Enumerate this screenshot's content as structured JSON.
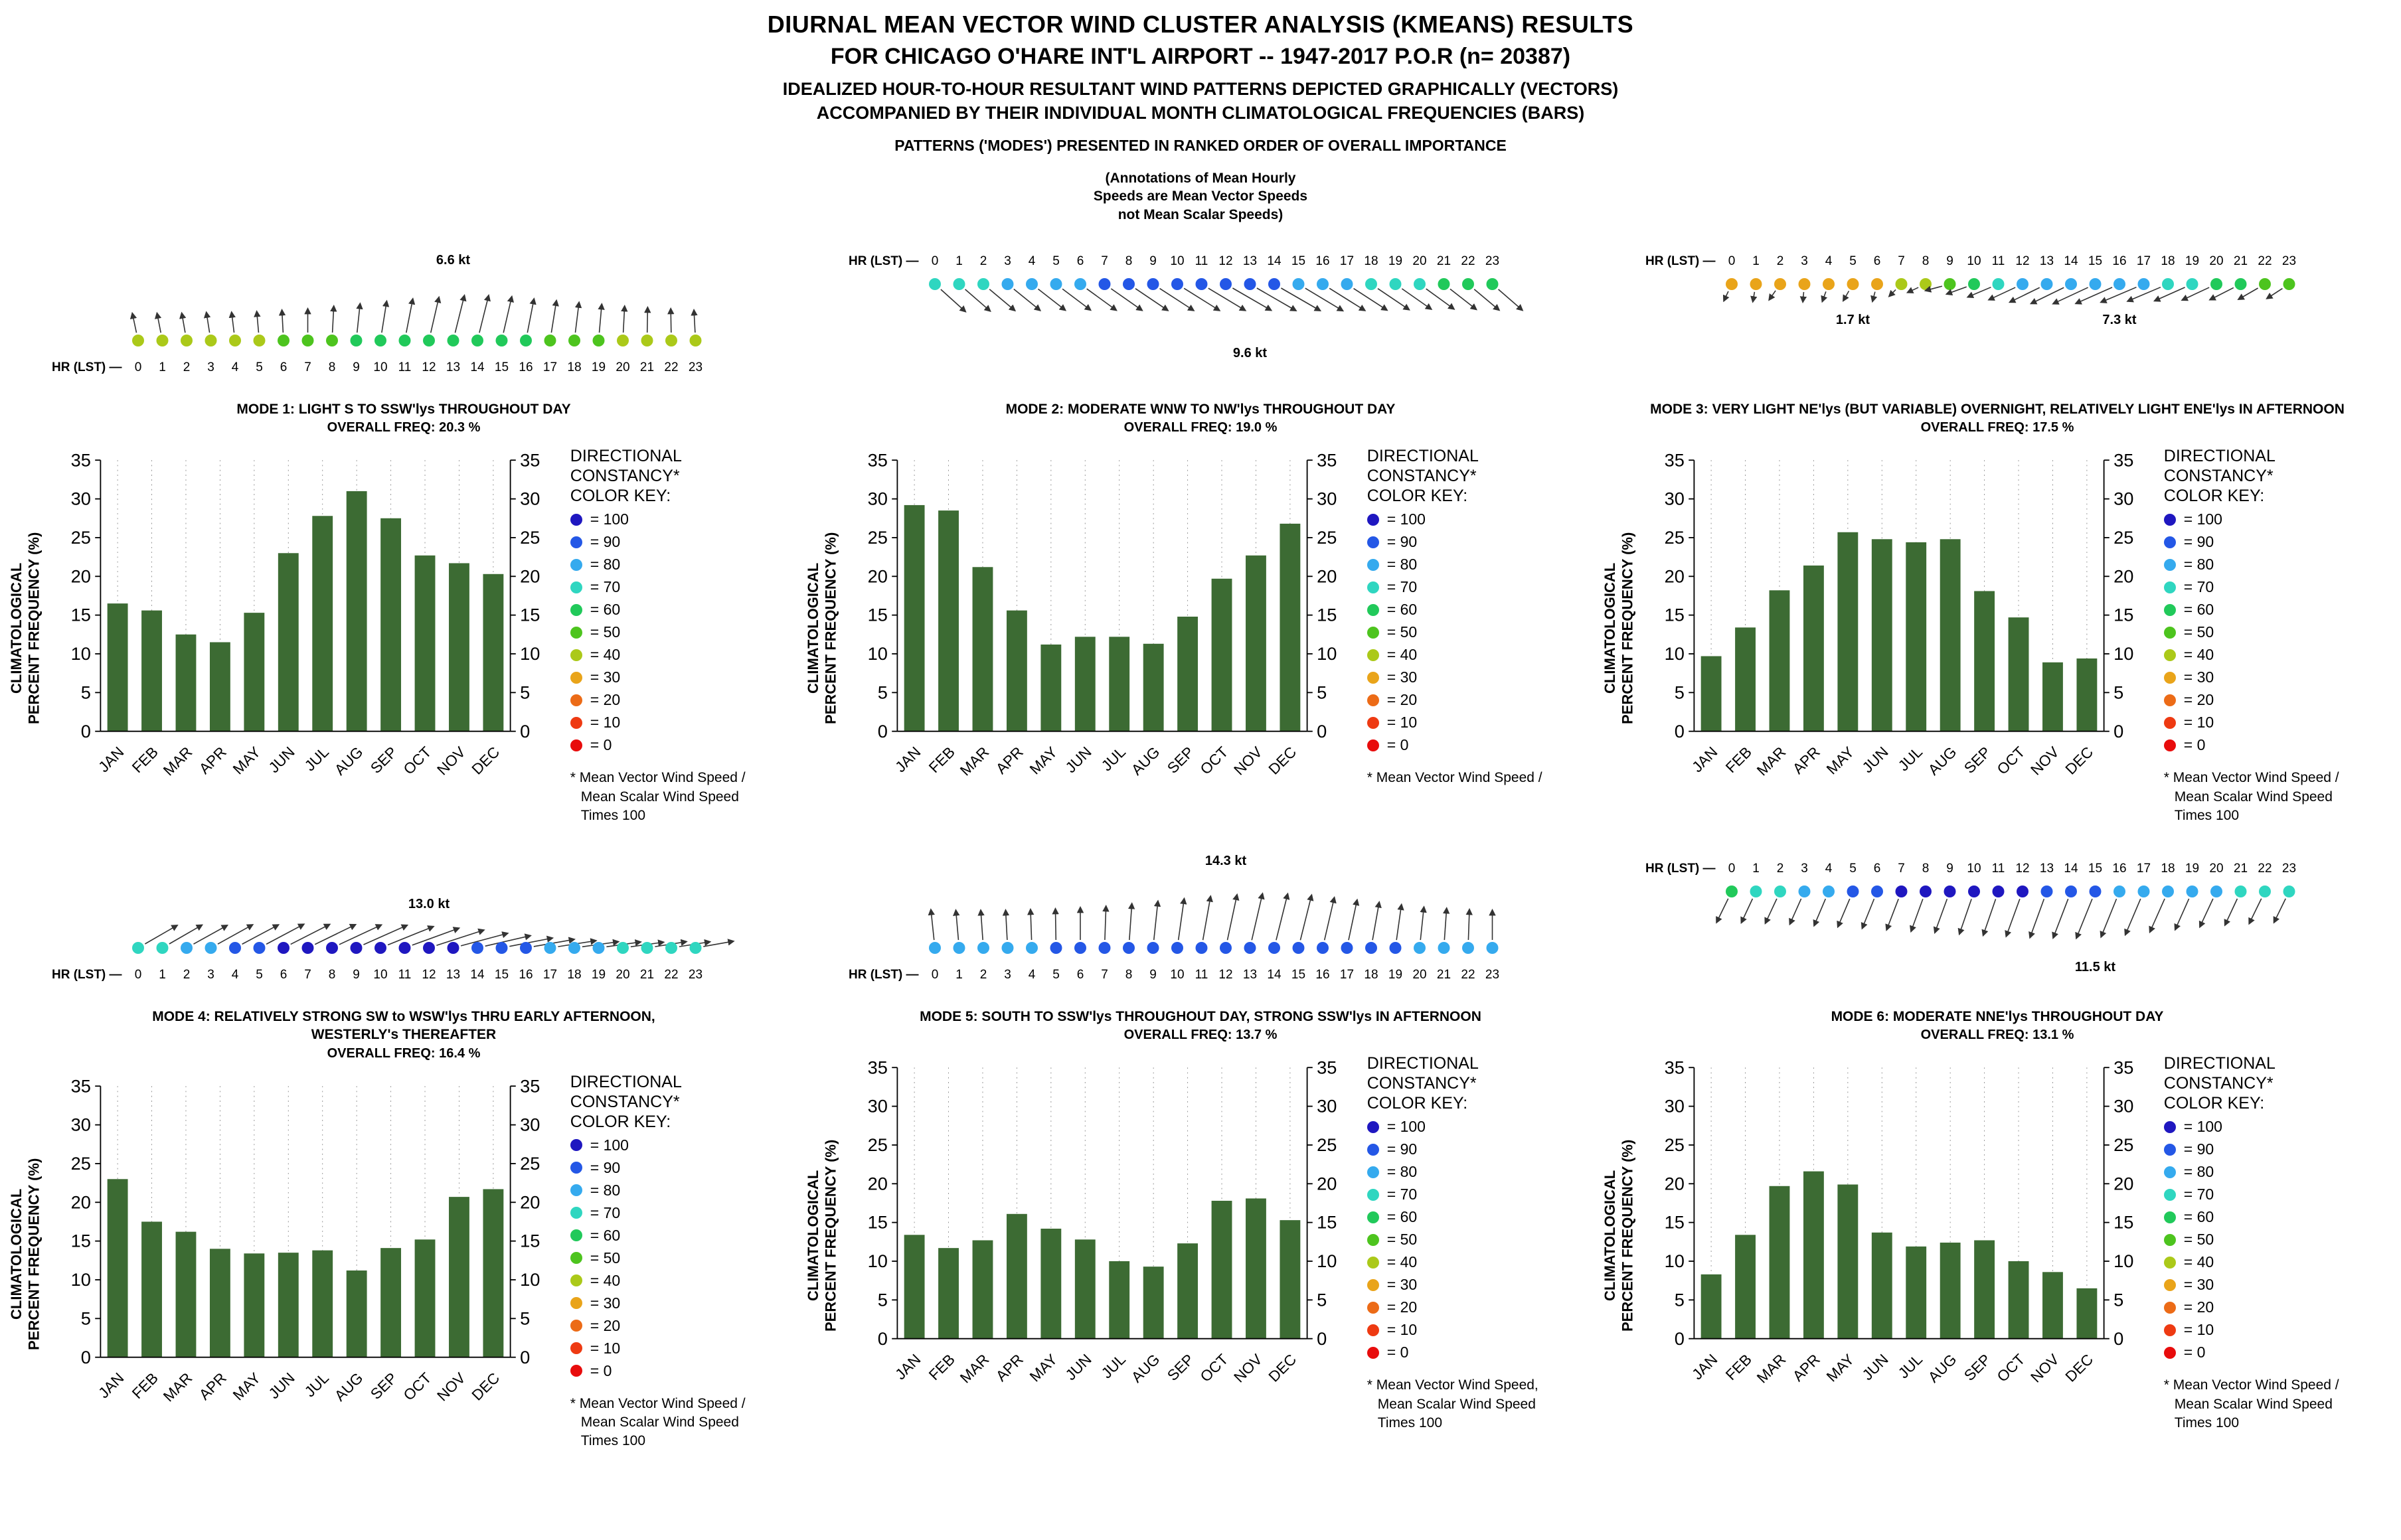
{
  "header": {
    "title1": "DIURNAL MEAN VECTOR WIND CLUSTER ANALYSIS (KMEANS) RESULTS",
    "title2": "FOR CHICAGO O'HARE INT'L AIRPORT -- 1947-2017 P.O.R (n= 20387)",
    "title3": "IDEALIZED HOUR-TO-HOUR RESULTANT WIND PATTERNS DEPICTED GRAPHICALLY (VECTORS)",
    "title4": "ACCOMPANIED BY THEIR INDIVIDUAL MONTH CLIMATOLOGICAL FREQUENCIES (BARS)",
    "title5": "PATTERNS ('MODES') PRESENTED IN RANKED ORDER OF OVERALL IMPORTANCE",
    "note_lines": [
      "(Annotations of Mean Hourly",
      "Speeds are Mean Vector Speeds",
      "not Mean Scalar Speeds)"
    ]
  },
  "axis": {
    "ylabel_lines": [
      "CLIMATOLOGICAL",
      "PERCENT FREQUENCY (%)"
    ],
    "yticks": [
      0,
      5,
      10,
      15,
      20,
      25,
      30,
      35
    ],
    "ylim": [
      0,
      35
    ],
    "months": [
      "JAN",
      "FEB",
      "MAR",
      "APR",
      "MAY",
      "JUN",
      "JUL",
      "AUG",
      "SEP",
      "OCT",
      "NOV",
      "DEC"
    ],
    "hr_label": "HR (LST)",
    "hours": [
      "0",
      "1",
      "2",
      "3",
      "4",
      "5",
      "6",
      "7",
      "8",
      "9",
      "10",
      "11",
      "12",
      "13",
      "14",
      "15",
      "16",
      "17",
      "18",
      "19",
      "20",
      "21",
      "22",
      "23"
    ]
  },
  "color_key": {
    "title_lines": [
      "DIRECTIONAL",
      "CONSTANCY*",
      "COLOR KEY:"
    ],
    "entries": [
      {
        "label": "= 100",
        "value": "100",
        "color": "#1f17c0"
      },
      {
        "label": "= 90",
        "value": "90",
        "color": "#2457e6"
      },
      {
        "label": "= 80",
        "value": "80",
        "color": "#35aaee"
      },
      {
        "label": "= 70",
        "value": "70",
        "color": "#2fd6c0"
      },
      {
        "label": "= 60",
        "value": "60",
        "color": "#21c95a"
      },
      {
        "label": "= 50",
        "value": "50",
        "color": "#4dc41e"
      },
      {
        "label": "= 40",
        "value": "40",
        "color": "#abc919"
      },
      {
        "label": "= 30",
        "value": "30",
        "color": "#e9a41a"
      },
      {
        "label": "= 20",
        "value": "20",
        "color": "#ec6b17"
      },
      {
        "label": "= 10",
        "value": "10",
        "color": "#ee3a12"
      },
      {
        "label": "= 0",
        "value": "0",
        "color": "#e80c0c"
      }
    ]
  },
  "bar_color": "#3c6b33",
  "chart_data": [
    {
      "type": "bar",
      "title_lines": [
        "MODE 1:  LIGHT S TO SSW'lys THROUGHOUT DAY"
      ],
      "freq": "OVERALL FREQ: 20.3 %",
      "categories": [
        "JAN",
        "FEB",
        "MAR",
        "APR",
        "MAY",
        "JUN",
        "JUL",
        "AUG",
        "SEP",
        "OCT",
        "NOV",
        "DEC"
      ],
      "values": [
        16.5,
        15.6,
        12.5,
        11.5,
        15.3,
        23.0,
        27.8,
        31.0,
        27.5,
        22.7,
        21.7,
        20.3
      ],
      "ylim": [
        0,
        35
      ],
      "arrows_side": "up",
      "annotations": [
        {
          "text": "6.6 kt",
          "hour": 13,
          "y": 45
        }
      ],
      "dot_constancy": [
        40,
        40,
        40,
        40,
        40,
        40,
        50,
        50,
        50,
        60,
        60,
        60,
        60,
        60,
        60,
        60,
        60,
        50,
        50,
        50,
        40,
        40,
        40,
        40
      ],
      "arrow_angles_deg": [
        102,
        101,
        100,
        99,
        97,
        95,
        93,
        90,
        87,
        84,
        81,
        79,
        77,
        76,
        76,
        77,
        79,
        81,
        83,
        85,
        87,
        89,
        91,
        93
      ],
      "arrow_lengths": [
        30,
        30,
        30,
        31,
        31,
        32,
        34,
        36,
        40,
        44,
        48,
        52,
        55,
        58,
        58,
        56,
        52,
        49,
        46,
        43,
        40,
        38,
        36,
        34
      ],
      "footnote_lines": [
        "* Mean Vector Wind Speed /",
        "Mean Scalar Wind Speed",
        "Times 100"
      ]
    },
    {
      "type": "bar",
      "title_lines": [
        "MODE 2:  MODERATE WNW TO NW'lys THROUGHOUT DAY"
      ],
      "freq": "OVERALL FREQ: 19.0 %",
      "categories": [
        "JAN",
        "FEB",
        "MAR",
        "APR",
        "MAY",
        "JUN",
        "JUL",
        "AUG",
        "SEP",
        "OCT",
        "NOV",
        "DEC"
      ],
      "values": [
        29.2,
        28.5,
        21.2,
        15.6,
        11.2,
        12.2,
        12.2,
        11.3,
        14.8,
        19.7,
        22.7,
        26.8
      ],
      "ylim": [
        0,
        35
      ],
      "arrows_side": "down",
      "annotations": [
        {
          "text": "9.6 kt",
          "hour": 13,
          "y": 185
        }
      ],
      "dot_constancy": [
        70,
        70,
        70,
        80,
        80,
        80,
        80,
        90,
        90,
        90,
        90,
        90,
        90,
        90,
        90,
        80,
        80,
        80,
        70,
        70,
        70,
        60,
        60,
        60
      ],
      "arrow_angles_deg": [
        -42,
        -41,
        -40,
        -39,
        -38,
        -37,
        -36,
        -35,
        -34,
        -33,
        -32,
        -31,
        -30,
        -30,
        -30,
        -31,
        -32,
        -33,
        -34,
        -35,
        -36,
        -38,
        -40,
        -41
      ],
      "arrow_lengths": [
        50,
        50,
        50,
        51,
        52,
        53,
        55,
        57,
        59,
        61,
        63,
        65,
        67,
        68,
        68,
        66,
        63,
        60,
        57,
        54,
        52,
        50,
        49,
        48
      ],
      "footnote_lines": [
        "* Mean Vector Wind Speed /"
      ]
    },
    {
      "type": "bar",
      "title_lines": [
        "MODE 3:  VERY LIGHT NE'lys (BUT VARIABLE) OVERNIGHT, RELATIVELY LIGHT ENE'lys IN AFTERNOON"
      ],
      "freq": "OVERALL FREQ: 17.5 %",
      "categories": [
        "JAN",
        "FEB",
        "MAR",
        "APR",
        "MAY",
        "JUN",
        "JUL",
        "AUG",
        "SEP",
        "OCT",
        "NOV",
        "DEC"
      ],
      "values": [
        9.7,
        13.4,
        18.2,
        21.4,
        25.7,
        24.8,
        24.4,
        24.8,
        18.1,
        14.7,
        8.9,
        9.4
      ],
      "ylim": [
        0,
        35
      ],
      "arrows_side": "down",
      "annotations": [
        {
          "text": "1.7 kt",
          "hour": 5,
          "y": 135
        },
        {
          "text": "7.3 kt",
          "hour": 16,
          "y": 135
        }
      ],
      "dot_constancy": [
        30,
        30,
        30,
        30,
        30,
        30,
        30,
        40,
        40,
        50,
        60,
        70,
        80,
        80,
        80,
        80,
        80,
        80,
        70,
        70,
        60,
        60,
        50,
        50
      ],
      "arrow_angles_deg": [
        -115,
        -100,
        -125,
        -95,
        -110,
        -120,
        -105,
        -135,
        -155,
        195,
        200,
        203,
        205,
        206,
        206,
        205,
        204,
        203,
        203,
        204,
        205,
        207,
        210,
        213
      ],
      "arrow_lengths": [
        16,
        15,
        17,
        15,
        16,
        17,
        15,
        14,
        18,
        26,
        32,
        38,
        44,
        50,
        55,
        58,
        60,
        58,
        54,
        50,
        45,
        40,
        34,
        28
      ],
      "footnote_lines": [
        "* Mean Vector Wind Speed /",
        "Mean Scalar Wind Speed",
        "Times 100"
      ]
    },
    {
      "type": "bar",
      "title_lines": [
        "MODE 4:  RELATIVELY STRONG SW to WSW'lys THRU EARLY AFTERNOON,",
        "WESTERLY's THEREAFTER"
      ],
      "freq": "OVERALL FREQ: 16.4 %",
      "categories": [
        "JAN",
        "FEB",
        "MAR",
        "APR",
        "MAY",
        "JUN",
        "JUL",
        "AUG",
        "SEP",
        "OCT",
        "NOV",
        "DEC"
      ],
      "values": [
        23.0,
        17.5,
        16.2,
        14.0,
        13.4,
        13.5,
        13.8,
        11.2,
        14.1,
        15.2,
        20.7,
        21.7
      ],
      "ylim": [
        0,
        35
      ],
      "arrows_side": "up",
      "annotations": [
        {
          "text": "13.0 kt",
          "hour": 12,
          "y": 100
        }
      ],
      "dot_constancy": [
        70,
        70,
        80,
        80,
        90,
        90,
        100,
        100,
        100,
        100,
        100,
        100,
        100,
        100,
        90,
        90,
        90,
        80,
        80,
        80,
        70,
        70,
        70,
        70
      ],
      "arrow_angles_deg": [
        30,
        30,
        29,
        29,
        28,
        28,
        27,
        26,
        25,
        24,
        22,
        20,
        18,
        15,
        13,
        11,
        10,
        9,
        8,
        8,
        8,
        9,
        9,
        10
      ],
      "arrow_lengths": [
        56,
        57,
        58,
        60,
        62,
        64,
        66,
        68,
        70,
        72,
        74,
        75,
        75,
        73,
        70,
        66,
        62,
        58,
        55,
        52,
        50,
        48,
        47,
        46
      ],
      "footnote_lines": [
        "* Mean Vector Wind Speed /",
        "Mean Scalar Wind Speed",
        "Times 100"
      ]
    },
    {
      "type": "bar",
      "title_lines": [
        "MODE 5:  SOUTH TO SSW'lys THROUGHOUT DAY, STRONG SSW'lys IN AFTERNOON"
      ],
      "freq": "OVERALL FREQ: 13.7 %",
      "categories": [
        "JAN",
        "FEB",
        "MAR",
        "APR",
        "MAY",
        "JUN",
        "JUL",
        "AUG",
        "SEP",
        "OCT",
        "NOV",
        "DEC"
      ],
      "values": [
        13.4,
        11.7,
        12.7,
        16.1,
        14.2,
        12.8,
        10.0,
        9.3,
        12.3,
        17.8,
        18.1,
        15.3
      ],
      "ylim": [
        0,
        35
      ],
      "arrows_side": "up",
      "annotations": [
        {
          "text": "14.3 kt",
          "hour": 12,
          "y": 35
        }
      ],
      "dot_constancy": [
        80,
        80,
        80,
        80,
        80,
        90,
        90,
        90,
        90,
        90,
        90,
        90,
        90,
        90,
        90,
        90,
        90,
        90,
        90,
        90,
        80,
        80,
        80,
        80
      ],
      "arrow_angles_deg": [
        96,
        95,
        94,
        93,
        92,
        91,
        90,
        88,
        86,
        84,
        82,
        80,
        78,
        77,
        76,
        76,
        77,
        78,
        80,
        82,
        84,
        86,
        88,
        90
      ],
      "arrow_lengths": [
        46,
        45,
        45,
        45,
        46,
        47,
        49,
        51,
        55,
        59,
        63,
        67,
        70,
        72,
        72,
        70,
        66,
        62,
        58,
        54,
        50,
        48,
        46,
        45
      ],
      "footnote_lines": [
        "* Mean Vector Wind Speed,",
        "Mean Scalar Wind Speed",
        "Times 100"
      ]
    },
    {
      "type": "bar",
      "title_lines": [
        "MODE 6:  MODERATE NNE'lys THROUGHOUT DAY"
      ],
      "freq": "OVERALL FREQ: 13.1 %",
      "categories": [
        "JAN",
        "FEB",
        "MAR",
        "APR",
        "MAY",
        "JUN",
        "JUL",
        "AUG",
        "SEP",
        "OCT",
        "NOV",
        "DEC"
      ],
      "values": [
        8.3,
        13.4,
        19.7,
        21.6,
        19.9,
        13.7,
        11.9,
        12.4,
        12.7,
        10.0,
        8.6,
        6.5
      ],
      "ylim": [
        0,
        35
      ],
      "arrows_side": "down",
      "annotations": [
        {
          "text": "11.5 kt",
          "hour": 15,
          "y": 195
        }
      ],
      "dot_constancy": [
        60,
        70,
        70,
        80,
        80,
        90,
        90,
        100,
        100,
        100,
        100,
        100,
        100,
        90,
        90,
        90,
        80,
        80,
        80,
        80,
        80,
        70,
        70,
        70
      ],
      "arrow_angles_deg": [
        -116,
        -115,
        -115,
        -114,
        -113,
        -113,
        -112,
        -111,
        -110,
        -110,
        -109,
        -109,
        -110,
        -110,
        -111,
        -112,
        -112,
        -113,
        -114,
        -114,
        -115,
        -115,
        -116,
        -116
      ],
      "arrow_lengths": [
        40,
        40,
        41,
        42,
        44,
        46,
        48,
        50,
        52,
        54,
        56,
        58,
        60,
        62,
        63,
        64,
        62,
        59,
        55,
        51,
        47,
        44,
        42,
        40
      ],
      "footnote_lines": [
        "* Mean Vector Wind Speed /",
        "Mean Scalar Wind Speed",
        "Times 100"
      ]
    }
  ]
}
